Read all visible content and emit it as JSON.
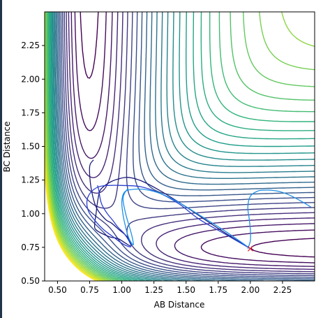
{
  "chart_data": {
    "type": "contour",
    "title": "",
    "xlabel": "AB Distance",
    "ylabel": "BC Distance",
    "xlim": [
      0.4,
      2.5
    ],
    "ylim": [
      0.5,
      2.5
    ],
    "xticks": [
      "0.50",
      "0.75",
      "1.00",
      "1.25",
      "1.50",
      "1.75",
      "2.00",
      "2.25"
    ],
    "yticks": [
      "0.50",
      "0.75",
      "1.00",
      "1.25",
      "1.50",
      "1.75",
      "2.00",
      "2.25"
    ],
    "colormap": "viridis",
    "contour_level_count": 30,
    "colors": {
      "traj_dark": "#1a1a7a",
      "traj_blue": "#2a3fd0",
      "traj_light": "#1e90e8",
      "marker": "#e8202a",
      "axes": "#000000"
    },
    "trajectories": [
      {
        "name": "",
        "points": [
          [
            2.0,
            0.74
          ],
          [
            1.75,
            0.89
          ],
          [
            1.5,
            1.05
          ],
          [
            1.3,
            1.17
          ],
          [
            1.15,
            1.245
          ],
          [
            1.05,
            1.27
          ],
          [
            0.98,
            1.26
          ],
          [
            0.92,
            1.24
          ],
          [
            0.87,
            1.21
          ],
          [
            0.83,
            1.17
          ],
          [
            0.81,
            1.08
          ],
          [
            0.8,
            1.0
          ],
          [
            0.79,
            0.93
          ],
          [
            0.8,
            0.88
          ],
          [
            0.9,
            0.83
          ],
          [
            0.97,
            0.815
          ],
          [
            1.03,
            0.78
          ],
          [
            1.07,
            0.76
          ],
          [
            1.06,
            0.8
          ],
          [
            1.03,
            0.84
          ],
          [
            0.98,
            0.88
          ],
          [
            0.92,
            0.93
          ],
          [
            0.87,
            0.96
          ],
          [
            0.8,
            1.05
          ],
          [
            0.76,
            1.2
          ],
          [
            0.75,
            1.35
          ],
          [
            0.78,
            1.4
          ]
        ],
        "color_key": "traj_dark"
      },
      {
        "name": "",
        "points": [
          [
            2.0,
            0.74
          ],
          [
            1.8,
            0.85
          ],
          [
            1.6,
            0.96
          ],
          [
            1.45,
            1.07
          ],
          [
            1.3,
            1.15
          ],
          [
            1.15,
            1.2
          ],
          [
            1.0,
            1.21
          ],
          [
            0.9,
            1.21
          ],
          [
            0.82,
            1.2
          ],
          [
            0.76,
            1.16
          ],
          [
            0.73,
            1.1
          ],
          [
            0.74,
            1.02
          ],
          [
            0.79,
            0.95
          ],
          [
            0.86,
            0.88
          ],
          [
            0.93,
            0.83
          ],
          [
            1.0,
            0.78
          ],
          [
            1.04,
            0.76
          ],
          [
            1.07,
            0.755
          ],
          [
            1.06,
            0.79
          ],
          [
            1.02,
            0.85
          ],
          [
            0.97,
            0.9
          ],
          [
            0.93,
            0.95
          ],
          [
            0.88,
            1.01
          ],
          [
            0.84,
            1.08
          ],
          [
            0.82,
            1.18
          ],
          [
            0.81,
            1.21
          ]
        ],
        "color_key": "traj_blue"
      },
      {
        "name": "",
        "points": [
          [
            2.0,
            0.74
          ],
          [
            1.82,
            0.86
          ],
          [
            1.62,
            0.98
          ],
          [
            1.45,
            1.08
          ],
          [
            1.3,
            1.15
          ],
          [
            1.18,
            1.18
          ],
          [
            1.08,
            1.18
          ],
          [
            1.02,
            1.16
          ],
          [
            1.0,
            1.09
          ],
          [
            1.01,
            0.99
          ],
          [
            1.03,
            0.9
          ],
          [
            1.05,
            0.83
          ],
          [
            1.07,
            0.79
          ],
          [
            1.09,
            0.77
          ],
          [
            1.08,
            0.83
          ],
          [
            1.06,
            0.9
          ],
          [
            1.03,
            1.0
          ],
          [
            1.01,
            1.1
          ],
          [
            1.02,
            1.15
          ],
          [
            1.05,
            1.19
          ]
        ],
        "color_key": "traj_light"
      },
      {
        "name": "",
        "points": [
          [
            1.98,
            0.74
          ],
          [
            2.0,
            0.8
          ],
          [
            2.0,
            0.88
          ],
          [
            1.99,
            0.97
          ],
          [
            1.98,
            1.05
          ],
          [
            2.0,
            1.13
          ],
          [
            2.05,
            1.165
          ],
          [
            2.1,
            1.175
          ],
          [
            2.2,
            1.17
          ],
          [
            2.3,
            1.14
          ],
          [
            2.4,
            1.09
          ],
          [
            2.47,
            1.05
          ]
        ],
        "color_key": "traj_light"
      }
    ],
    "marker": {
      "label": "x",
      "position": [
        2.0,
        0.74
      ],
      "color_key": "marker"
    }
  }
}
